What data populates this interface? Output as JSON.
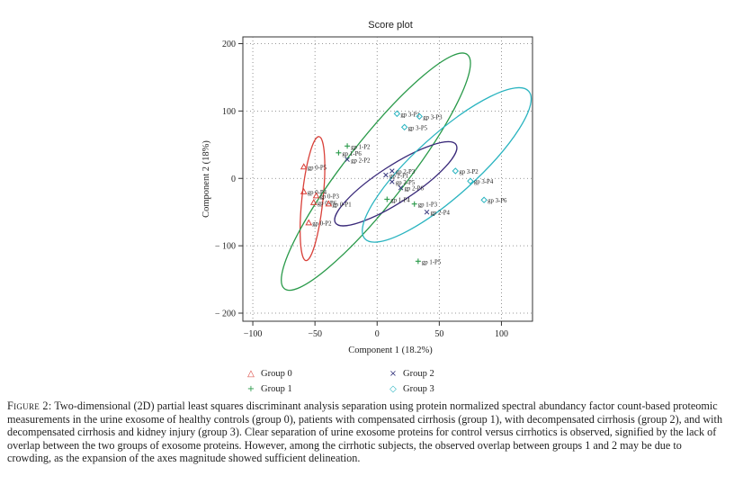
{
  "chart_data": {
    "type": "scatter",
    "title": "Score plot",
    "xlabel": "Component 1 (18.2%)",
    "ylabel": "Component 2 (18%)",
    "xlim": [
      -108,
      125
    ],
    "ylim": [
      -212,
      210
    ],
    "xticks": [
      -100,
      -50,
      0,
      50,
      100
    ],
    "yticks": [
      -200,
      -100,
      0,
      100,
      200
    ],
    "grid": true,
    "legend_position": "bottom",
    "series": [
      {
        "name": "Group 0",
        "marker": "triangle",
        "color": "#d9413a",
        "points": [
          {
            "label": "gp 0-P5",
            "x": -59,
            "y": 17
          },
          {
            "label": "gp 0-P4",
            "x": -59,
            "y": -20
          },
          {
            "label": "gp 0-P3",
            "x": -49,
            "y": -26
          },
          {
            "label": "gp 0-P6",
            "x": -51,
            "y": -36
          },
          {
            "label": "gp 0-P1",
            "x": -39,
            "y": -38
          },
          {
            "label": "gp 0-P2",
            "x": -55,
            "y": -66
          }
        ]
      },
      {
        "name": "Group 1",
        "marker": "plus",
        "color": "#2a9a4a",
        "points": [
          {
            "label": "gp 1-P2",
            "x": -24,
            "y": 48
          },
          {
            "label": "gp 1-P6",
            "x": -31,
            "y": 38
          },
          {
            "label": "gp 1-P4",
            "x": 8,
            "y": -31
          },
          {
            "label": "gp 1-P3",
            "x": 30,
            "y": -38
          },
          {
            "label": "gp 1-P5",
            "x": 33,
            "y": -123
          }
        ]
      },
      {
        "name": "Group 2",
        "marker": "cross",
        "color": "#3a3a80",
        "points": [
          {
            "label": "gp 2-P2",
            "x": -24,
            "y": 28
          },
          {
            "label": "gp 2-P3",
            "x": 12,
            "y": 11
          },
          {
            "label": "gp 2-P1",
            "x": 7,
            "y": 5
          },
          {
            "label": "gp 2-P5",
            "x": 12,
            "y": -5
          },
          {
            "label": "gp 2-P6",
            "x": 19,
            "y": -14
          },
          {
            "label": "gp 2-P4",
            "x": 40,
            "y": -50
          }
        ]
      },
      {
        "name": "Group 3",
        "marker": "diamond",
        "color": "#2ab4c0",
        "points": [
          {
            "label": "gp 3-P1",
            "x": 16,
            "y": 96
          },
          {
            "label": "gp 3-P3",
            "x": 34,
            "y": 92
          },
          {
            "label": "gp 3-P5",
            "x": 22,
            "y": 76
          },
          {
            "label": "gp 3-P2",
            "x": 63,
            "y": 11
          },
          {
            "label": "gp 3-P4",
            "x": 75,
            "y": -4
          },
          {
            "label": "gp 3-P6",
            "x": 86,
            "y": -32
          }
        ]
      }
    ],
    "ellipses": [
      {
        "group": "Group 0",
        "cx": -52,
        "cy": -30,
        "rx": 65,
        "ry": 11,
        "angle_deg": -84,
        "color": "#d9413a"
      },
      {
        "group": "Group 1",
        "cx": -1,
        "cy": 10,
        "rx": 155,
        "ry": 32,
        "angle_deg": -52,
        "color": "#2a9a4a"
      },
      {
        "group": "Group 2",
        "cx": 15,
        "cy": -8,
        "rx": 75,
        "ry": 19,
        "angle_deg": -33,
        "color": "#3a2a7a"
      },
      {
        "group": "Group 3",
        "cx": 56,
        "cy": 20,
        "rx": 115,
        "ry": 32,
        "angle_deg": -42,
        "color": "#2ab4c0"
      }
    ]
  },
  "legend": [
    {
      "label": "Group 0",
      "symbol": "△",
      "color": "#d9413a"
    },
    {
      "label": "Group 2",
      "symbol": "×",
      "color": "#3a3a80"
    },
    {
      "label": "Group 1",
      "symbol": "+",
      "color": "#2a9a4a"
    },
    {
      "label": "Group 3",
      "symbol": "◇",
      "color": "#2ab4c0"
    }
  ],
  "caption": {
    "fig_label": "Figure 2:",
    "text": "Two-dimensional (2D) partial least squares discriminant analysis separation using protein normalized spectral abundancy factor count-based proteomic measurements in the urine exosome of healthy controls (group 0), patients with compensated cirrhosis (group 1), with decompensated cirrhosis (group 2), and with decompensated cirrhosis and kidney injury (group 3). Clear separation of urine exosome proteins for control versus cirrhotics is observed, signified by the lack of overlap between the two groups of exosome proteins. However, among the cirrhotic subjects, the observed overlap between groups 1 and 2 may be due to crowding, as the expansion of the axes magnitude showed sufficient delineation."
  }
}
